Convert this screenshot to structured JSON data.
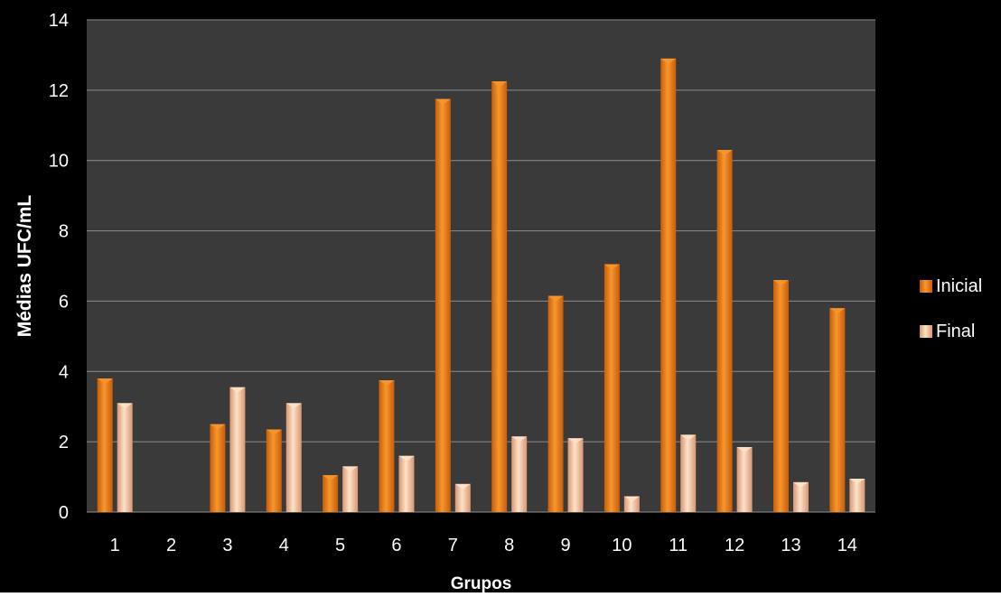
{
  "colors": {
    "background": "#000000",
    "plot_area": "#3a3a3a",
    "gridline": "#8c8c8c",
    "text": "#ffffff",
    "inicial_dark": "#c85d08",
    "inicial_light": "#f7962e",
    "final_dark": "#d89672",
    "final_light": "#fde2c8"
  },
  "chart_data": {
    "type": "bar",
    "title": "",
    "xlabel": "Grupos",
    "ylabel": "Médias UFC/mL",
    "categories": [
      "1",
      "2",
      "3",
      "4",
      "5",
      "6",
      "7",
      "8",
      "9",
      "10",
      "11",
      "12",
      "13",
      "14"
    ],
    "series": [
      {
        "name": "Inicial",
        "values": [
          3.8,
          0,
          2.5,
          2.35,
          1.05,
          3.75,
          11.75,
          12.25,
          6.15,
          7.05,
          12.9,
          10.3,
          6.6,
          5.8
        ]
      },
      {
        "name": "Final",
        "values": [
          3.1,
          0,
          3.55,
          3.1,
          1.3,
          1.6,
          0.8,
          2.15,
          2.1,
          0.45,
          2.2,
          1.85,
          0.85,
          0.95
        ]
      }
    ],
    "ylim": [
      0,
      14
    ],
    "yticks": [
      0,
      2,
      4,
      6,
      8,
      10,
      12,
      14
    ],
    "grid": true,
    "legend_position": "right",
    "style": "3d-cylinder-bars"
  }
}
